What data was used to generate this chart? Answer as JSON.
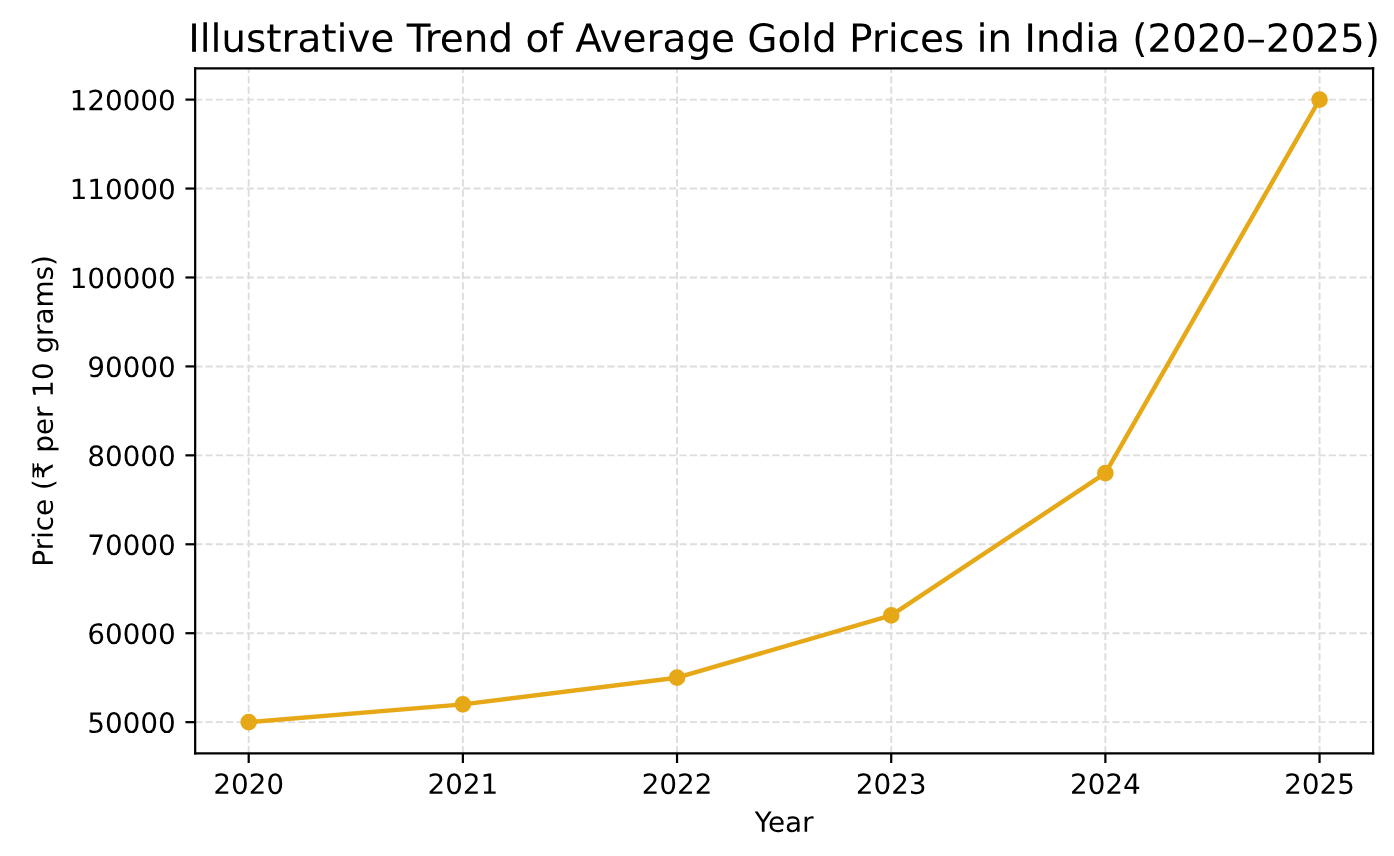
{
  "chart_data": {
    "type": "line",
    "title": "Illustrative Trend of Average Gold Prices in India (2020–2025)",
    "xlabel": "Year",
    "ylabel": "Price (₹ per 10 grams)",
    "x": [
      2020,
      2021,
      2022,
      2023,
      2024,
      2025
    ],
    "series": [
      {
        "color": "#e6a817",
        "values": [
          50000,
          52000,
          55000,
          62000,
          78000,
          120000
        ]
      }
    ],
    "xlim": [
      2019.75,
      2025.25
    ],
    "xticks": [
      2020,
      2021,
      2022,
      2023,
      2024,
      2025
    ],
    "ylim": [
      46500,
      123500
    ],
    "yticks": [
      50000,
      60000,
      70000,
      80000,
      90000,
      100000,
      110000,
      120000
    ],
    "grid": true,
    "marker": "circle",
    "line_style": "solid",
    "legend": false
  }
}
